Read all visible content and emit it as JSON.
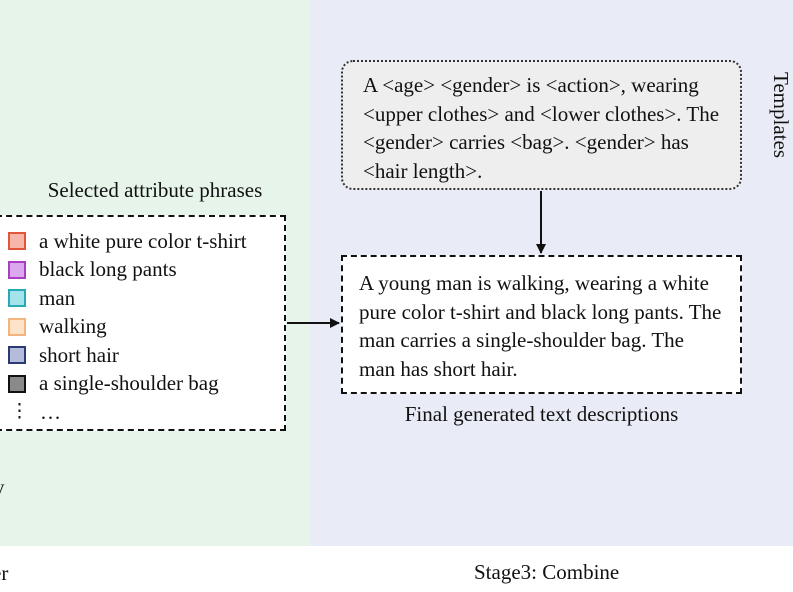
{
  "left_panel": {
    "title": "Selected attribute phrases",
    "cut_text_y": "y",
    "cut_text_er": "er",
    "items": [
      {
        "label": "a white pure color t-shirt",
        "border": "#e2553b",
        "fill": "#f6b7aa"
      },
      {
        "label": "black long pants",
        "border": "#a63fc0",
        "fill": "#dba8ee"
      },
      {
        "label": "man",
        "border": "#27a9b6",
        "fill": "#a5e3ea"
      },
      {
        "label": "walking",
        "border": "#f3b57f",
        "fill": "#fde4c9"
      },
      {
        "label": "short hair",
        "border": "#2c3a73",
        "fill": "#b4bcd9"
      },
      {
        "label": "a single-shoulder bag",
        "border": "#111111",
        "fill": "#8a8a8a"
      }
    ],
    "ellipsis": "…"
  },
  "templates": {
    "label": "Templates",
    "text": "A <age> <gender> is <action>, wearing <upper clothes>  and <lower clothes>. The <gender> carries <bag>. <gender> has <hair length>."
  },
  "final": {
    "text": "A young man is walking, wearing a white pure color t-shirt and black long pants. The man carries a single-shoulder bag. The man has short hair.",
    "caption": "Final generated text descriptions"
  },
  "stage3": {
    "label": "Stage3: Combine"
  },
  "colors": {
    "left_bg": "#e6f4ea",
    "right_bg": "#e9ecf6",
    "template_bg": "#eeeeee"
  }
}
